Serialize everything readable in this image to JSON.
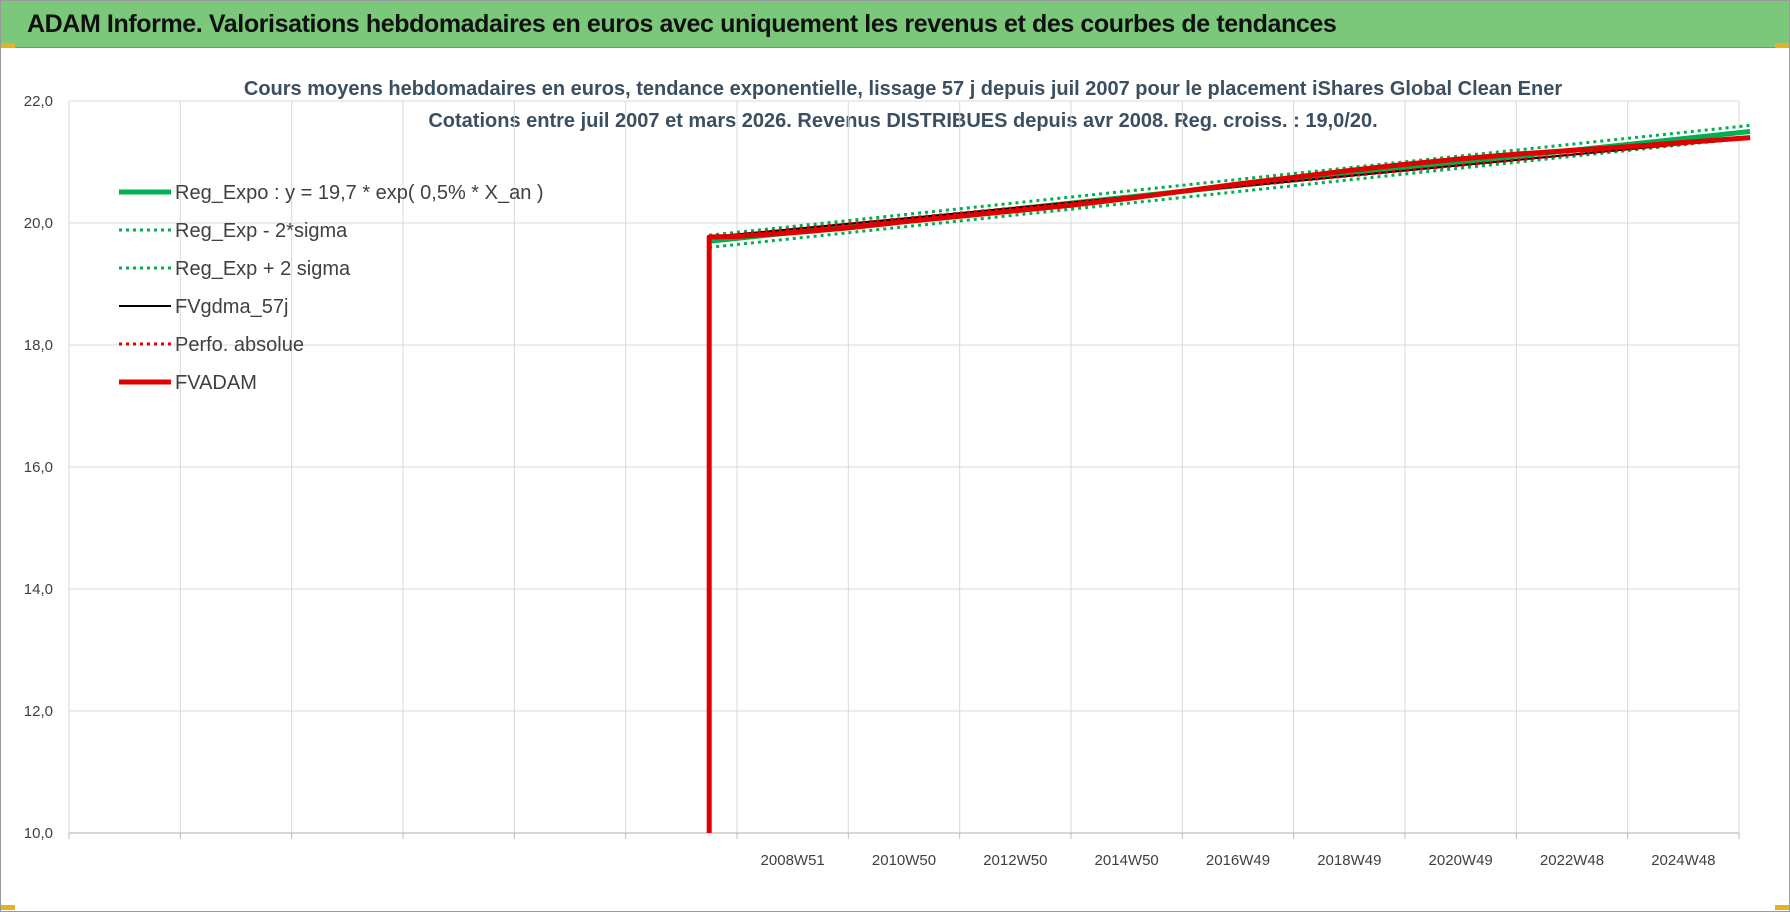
{
  "header": {
    "title": "ADAM Informe. Valorisations hebdomadaires en euros avec uniquement les revenus et des courbes de tendances"
  },
  "colors": {
    "banner": "#7cc87a",
    "trend": "#00b050",
    "fvadam": "#e00000",
    "fvgdma": "#000000",
    "perfo": "#e00000"
  },
  "chart_data": {
    "type": "line",
    "title": "Cours moyens hebdomadaires en euros, tendance exponentielle, lissage 57 j depuis juil 2007 pour le placement iShares Global Clean Ener",
    "subtitle": "Cotations entre juil 2007 et mars 2026. Revenus DISTRIBUES depuis avr 2008. Reg. croiss. : 19,0/20.",
    "xlabel": "",
    "ylabel": "",
    "ylim": [
      10,
      22
    ],
    "y_ticks": [
      "10,0",
      "12,0",
      "14,0",
      "16,0",
      "18,0",
      "20,0",
      "22,0"
    ],
    "x_ticks": [
      "2008W51",
      "2010W50",
      "2012W50",
      "2014W50",
      "2016W49",
      "2018W49",
      "2020W49",
      "2022W48",
      "2024W48"
    ],
    "x_range": [
      "1996",
      "2026"
    ],
    "grid": true,
    "legend_position": "top-left",
    "series": [
      {
        "name": "Reg_Expo : y = 19,7 * exp( 0,5% *  X_an )",
        "style": "solid-thick",
        "color": "#00b050",
        "x": [
          2007.5,
          2026.2
        ],
        "values": [
          19.7,
          21.5
        ]
      },
      {
        "name": "Reg_Exp - 2*sigma",
        "style": "dotted",
        "color": "#00b050",
        "x": [
          2007.5,
          2026.2
        ],
        "values": [
          19.6,
          21.4
        ]
      },
      {
        "name": "Reg_Exp + 2 sigma",
        "style": "dotted",
        "color": "#00b050",
        "x": [
          2007.5,
          2026.2
        ],
        "values": [
          19.8,
          21.6
        ]
      },
      {
        "name": "FVgdma_57j",
        "style": "solid",
        "color": "#000000",
        "x": [
          2007.5,
          2026.2
        ],
        "values": [
          19.77,
          21.4
        ]
      },
      {
        "name": "Perfo. absolue",
        "style": "dotted",
        "color": "#e00000",
        "x": [
          2007.5,
          2026.2
        ],
        "values": [
          19.77,
          21.4
        ]
      },
      {
        "name": "FVADAM",
        "style": "solid-thick",
        "color": "#e00000",
        "x": [
          2007.5,
          2007.5,
          2008.0,
          2009.0,
          2010.0,
          2011.0,
          2012.0,
          2013.0,
          2014.0,
          2015.0,
          2016.0,
          2017.0,
          2018.0,
          2019.0,
          2020.0,
          2021.0,
          2022.0,
          2023.0,
          2024.0,
          2025.0,
          2026.2
        ],
        "values": [
          10.0,
          19.77,
          19.78,
          19.84,
          19.92,
          20.02,
          20.11,
          20.2,
          20.29,
          20.4,
          20.52,
          20.64,
          20.75,
          20.86,
          20.96,
          21.05,
          21.13,
          21.19,
          21.25,
          21.32,
          21.4
        ]
      }
    ]
  }
}
